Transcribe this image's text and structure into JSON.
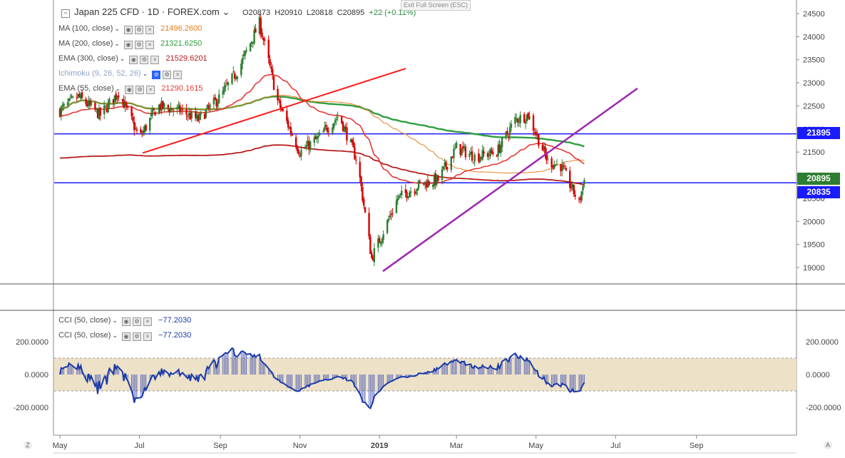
{
  "title": {
    "symbol": "Japan 225 CFD",
    "interval": "1D",
    "exchange": "FOREX.com",
    "open": "O20873",
    "high": "H20910",
    "low": "L20818",
    "close": "C20895",
    "change": "+22 (+0.11%)"
  },
  "exit_fullscreen": "Exit Full Screen (ESC)",
  "indicators": [
    {
      "label": "MA (100, close)",
      "value": "21496.2600",
      "color": "#e67e22"
    },
    {
      "label": "MA (200, close)",
      "value": "21321.6250",
      "color": "#2e9e3e"
    },
    {
      "label": "EMA (300, close)",
      "value": "21529.6201",
      "color": "#b71c1c"
    },
    {
      "label": "Ichimoku (9, 26, 52, 26)",
      "value": "",
      "color": "#2962ff"
    },
    {
      "label": "EMA (55, close)",
      "value": "21290.1615",
      "color": "#e53935"
    }
  ],
  "cci_indicators": [
    {
      "label": "CCI (50, close)",
      "value": "−77.2030"
    },
    {
      "label": "CCI (50, close)",
      "value": "−77.2030"
    }
  ],
  "price_tags": {
    "upper_line": "21895",
    "current": "20895",
    "lower_line": "20835"
  },
  "x_axis_labels": [
    "May",
    "Jul",
    "Sep",
    "Nov",
    "2019",
    "Mar",
    "May",
    "Jul",
    "Sep"
  ],
  "price_axis_labels": [
    "24500",
    "24000",
    "23500",
    "23000",
    "22500",
    "22000",
    "21500",
    "21000",
    "20500",
    "20000",
    "19500",
    "19000"
  ],
  "cci_axis_labels": [
    "200.0000",
    "0.0000",
    "-200.0000"
  ],
  "corner_left": "Z",
  "corner_right": "A",
  "colors": {
    "up_candle": "#2e7d32",
    "down_candle": "#d50000",
    "horizontal_lines": "#1a1aff",
    "resistance_line": "#ff1a1a",
    "support_line": "#9c27b0",
    "cci_line": "#1a3aa8",
    "cci_band": "#ede1c8",
    "tag_green": "#2e7d32",
    "tag_blue": "#1a1aff"
  },
  "chart_data": {
    "type": "candlestick",
    "title": "Japan 225 CFD · 1D · FOREX.com",
    "ylim": [
      18700,
      24700
    ],
    "x": [
      "2018-05",
      "2018-07",
      "2018-09",
      "2018-11",
      "2019-01",
      "2019-03",
      "2019-05",
      "2019-07",
      "2019-09"
    ],
    "price_series": [
      {
        "date": "2018-05-01",
        "close": 22400
      },
      {
        "date": "2018-05-15",
        "close": 22700
      },
      {
        "date": "2018-06-01",
        "close": 22300
      },
      {
        "date": "2018-06-15",
        "close": 22800
      },
      {
        "date": "2018-07-01",
        "close": 21800
      },
      {
        "date": "2018-07-15",
        "close": 22500
      },
      {
        "date": "2018-08-01",
        "close": 22400
      },
      {
        "date": "2018-08-15",
        "close": 22200
      },
      {
        "date": "2018-09-01",
        "close": 22700
      },
      {
        "date": "2018-09-15",
        "close": 23300
      },
      {
        "date": "2018-10-01",
        "close": 24300
      },
      {
        "date": "2018-10-15",
        "close": 22600
      },
      {
        "date": "2018-11-01",
        "close": 21500
      },
      {
        "date": "2018-11-15",
        "close": 21800
      },
      {
        "date": "2018-12-01",
        "close": 22300
      },
      {
        "date": "2018-12-15",
        "close": 21300
      },
      {
        "date": "2018-12-26",
        "close": 19200
      },
      {
        "date": "2019-01-15",
        "close": 20500
      },
      {
        "date": "2019-02-01",
        "close": 20800
      },
      {
        "date": "2019-02-15",
        "close": 20900
      },
      {
        "date": "2019-03-01",
        "close": 21600
      },
      {
        "date": "2019-03-15",
        "close": 21400
      },
      {
        "date": "2019-04-01",
        "close": 21500
      },
      {
        "date": "2019-04-15",
        "close": 22200
      },
      {
        "date": "2019-04-25",
        "close": 22300
      },
      {
        "date": "2019-05-10",
        "close": 21300
      },
      {
        "date": "2019-05-20",
        "close": 21200
      },
      {
        "date": "2019-06-03",
        "close": 20400
      },
      {
        "date": "2019-06-07",
        "close": 20895
      }
    ],
    "overlays": [
      {
        "name": "MA (100, close)",
        "last": 21496.26
      },
      {
        "name": "MA (200, close)",
        "last": 21321.625
      },
      {
        "name": "EMA (300, close)",
        "last": 21529.6201
      },
      {
        "name": "EMA (55, close)",
        "last": 21290.1615
      }
    ],
    "horizontal_levels": [
      21895,
      20835
    ],
    "current_price": 20895,
    "cci": {
      "name": "CCI (50, close)",
      "last": -77.203,
      "ylim": [
        -300,
        300
      ],
      "band": [
        -100,
        100
      ]
    }
  }
}
